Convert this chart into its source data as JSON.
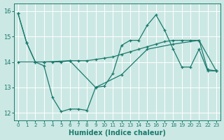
{
  "xlabel": "Humidex (Indice chaleur)",
  "xlim": [
    -0.5,
    23.5
  ],
  "ylim": [
    11.7,
    16.3
  ],
  "yticks": [
    12,
    13,
    14,
    15,
    16
  ],
  "xticks": [
    0,
    1,
    2,
    3,
    4,
    5,
    6,
    7,
    8,
    9,
    10,
    11,
    12,
    13,
    14,
    15,
    16,
    17,
    18,
    19,
    20,
    21,
    22,
    23
  ],
  "bg_color": "#cce8e4",
  "grid_color": "#b0d8d4",
  "line_color": "#1a7a6e",
  "line1_x": [
    0,
    1,
    2,
    3,
    4,
    5,
    6,
    7,
    8,
    9,
    10,
    11,
    12,
    13,
    14,
    15,
    16,
    17,
    18,
    19,
    20,
    21,
    22,
    23
  ],
  "line1_y": [
    15.9,
    14.75,
    14.0,
    14.0,
    14.0,
    14.0,
    14.05,
    14.05,
    14.05,
    14.1,
    14.15,
    14.2,
    14.3,
    14.4,
    14.5,
    14.6,
    14.7,
    14.8,
    14.85,
    14.85,
    14.85,
    14.85,
    13.7,
    13.65
  ],
  "line2_x": [
    0,
    1,
    2,
    3,
    4,
    5,
    6,
    7,
    8,
    9,
    10,
    11,
    12,
    13,
    14,
    15,
    16,
    17,
    18,
    19,
    20,
    21,
    22,
    23
  ],
  "line2_y": [
    15.9,
    14.75,
    14.0,
    13.85,
    12.6,
    12.05,
    12.15,
    12.15,
    12.1,
    13.0,
    13.05,
    13.55,
    14.65,
    14.85,
    14.85,
    15.45,
    15.85,
    15.25,
    14.5,
    13.8,
    13.8,
    14.5,
    13.65,
    13.65
  ],
  "line3_x": [
    0,
    3,
    6,
    9,
    12,
    15,
    18,
    21,
    23
  ],
  "line3_y": [
    14.0,
    14.0,
    14.05,
    13.0,
    13.5,
    14.5,
    14.7,
    14.85,
    13.65
  ]
}
